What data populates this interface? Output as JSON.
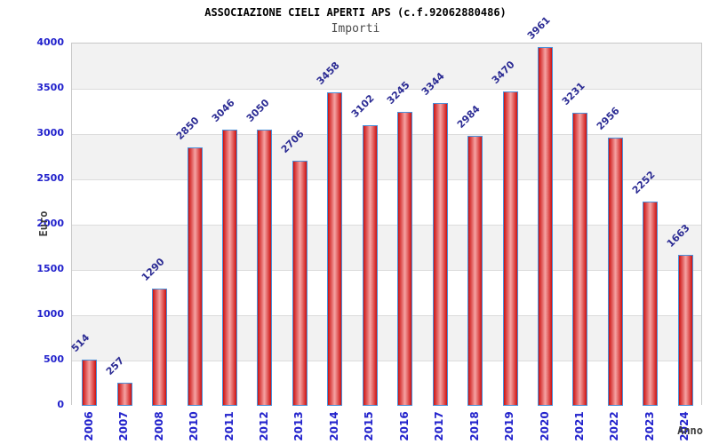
{
  "chart_data": {
    "type": "bar",
    "title": "ASSOCIAZIONE CIELI APERTI APS (c.f.92062880486)",
    "subtitle": "Importi",
    "xlabel": "Anno",
    "ylabel": "Euro",
    "categories": [
      "2006",
      "2007",
      "2008",
      "2010",
      "2011",
      "2012",
      "2013",
      "2014",
      "2015",
      "2016",
      "2017",
      "2018",
      "2019",
      "2020",
      "2021",
      "2022",
      "2023",
      "2024"
    ],
    "values": [
      514,
      257,
      1290,
      2850,
      3046,
      3050,
      2706,
      3458,
      3102,
      3245,
      3344,
      2984,
      3470,
      3961,
      3231,
      2956,
      2252,
      1663
    ],
    "ylim": [
      0,
      4000
    ],
    "ytick_step": 500,
    "yticks": [
      0,
      500,
      1000,
      1500,
      2000,
      2500,
      3000,
      3500,
      4000
    ],
    "grid": true,
    "legend": "none",
    "colors": {
      "bar_edge": "#cc1111",
      "bar_center": "#f5a3a3",
      "bar_border": "#4a90d9",
      "band_gray": "#f2f2f2",
      "band_white": "#ffffff",
      "gridline": "#dcdcdc",
      "plot_border": "#c8c8c8",
      "tick_label": "#2222cc",
      "value_label": "#2c2c94",
      "title": "#000000",
      "subtitle": "#4d4d4d",
      "axis_title": "#3d3d3d"
    }
  }
}
